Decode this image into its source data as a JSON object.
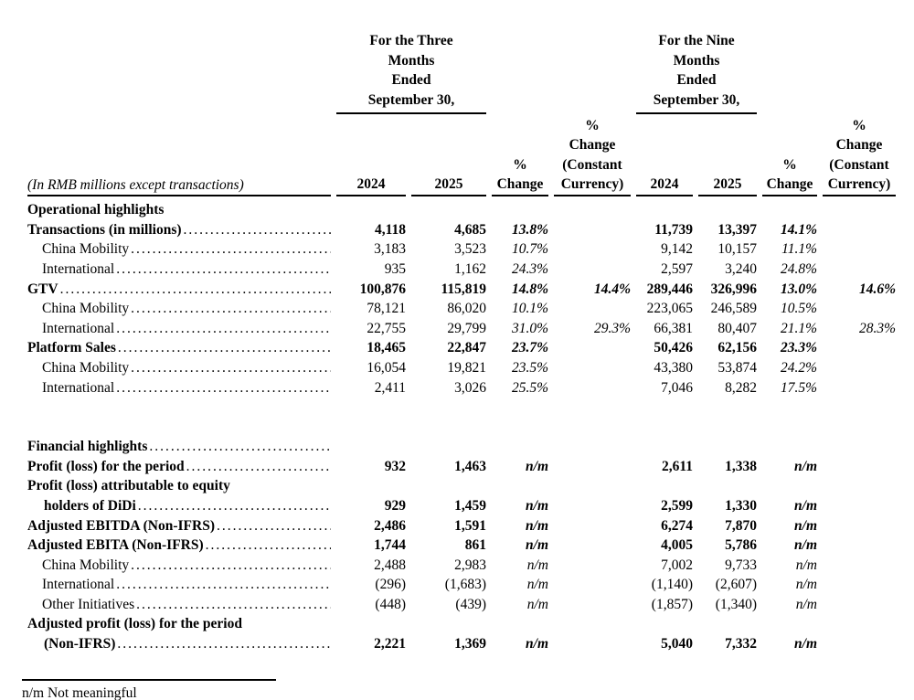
{
  "page": {
    "background": "#ffffff",
    "text_color": "#000000"
  },
  "table": {
    "row_label_header": "(In RMB millions except transactions)",
    "period_groups": [
      {
        "title": "For the Three\nMonths\nEnded\nSeptember 30,"
      },
      {
        "title": "For the Nine\nMonths\nEnded\nSeptember 30,"
      }
    ],
    "column_headers": [
      "2024",
      "2025",
      "%\nChange",
      "%\nChange\n(Constant\nCurrency)",
      "2024",
      "2025",
      "%\nChange",
      "%\nChange\n(Constant\nCurrency)"
    ],
    "rows": [
      {
        "label": "Operational highlights",
        "bold": true,
        "indent": 0,
        "leader": false,
        "values": [
          "",
          "",
          "",
          "",
          "",
          "",
          "",
          ""
        ]
      },
      {
        "label": "Transactions (in millions)",
        "bold": true,
        "indent": 0,
        "leader": true,
        "values": [
          "4,118",
          "4,685",
          "13.8%",
          "",
          "11,739",
          "13,397",
          "14.1%",
          ""
        ]
      },
      {
        "label": "China Mobility",
        "bold": false,
        "indent": 1,
        "leader": true,
        "values": [
          "3,183",
          "3,523",
          "10.7%",
          "",
          "9,142",
          "10,157",
          "11.1%",
          ""
        ]
      },
      {
        "label": "International",
        "bold": false,
        "indent": 1,
        "leader": true,
        "values": [
          "935",
          "1,162",
          "24.3%",
          "",
          "2,597",
          "3,240",
          "24.8%",
          ""
        ]
      },
      {
        "label": "GTV",
        "bold": true,
        "indent": 0,
        "leader": true,
        "values": [
          "100,876",
          "115,819",
          "14.8%",
          "14.4%",
          "289,446",
          "326,996",
          "13.0%",
          "14.6%"
        ]
      },
      {
        "label": "China Mobility",
        "bold": false,
        "indent": 1,
        "leader": true,
        "values": [
          "78,121",
          "86,020",
          "10.1%",
          "",
          "223,065",
          "246,589",
          "10.5%",
          ""
        ]
      },
      {
        "label": "International",
        "bold": false,
        "indent": 1,
        "leader": true,
        "values": [
          "22,755",
          "29,799",
          "31.0%",
          "29.3%",
          "66,381",
          "80,407",
          "21.1%",
          "28.3%"
        ]
      },
      {
        "label": "Platform Sales",
        "bold": true,
        "indent": 0,
        "leader": true,
        "values": [
          "18,465",
          "22,847",
          "23.7%",
          "",
          "50,426",
          "62,156",
          "23.3%",
          ""
        ]
      },
      {
        "label": "China Mobility",
        "bold": false,
        "indent": 1,
        "leader": true,
        "values": [
          "16,054",
          "19,821",
          "23.5%",
          "",
          "43,380",
          "53,874",
          "24.2%",
          ""
        ]
      },
      {
        "label": "International",
        "bold": false,
        "indent": 1,
        "leader": true,
        "values": [
          "2,411",
          "3,026",
          "25.5%",
          "",
          "7,046",
          "8,282",
          "17.5%",
          ""
        ]
      },
      {
        "spacer": true
      },
      {
        "label": "Financial highlights",
        "bold": true,
        "indent": 0,
        "leader": true,
        "values": [
          "",
          "",
          "",
          "",
          "",
          "",
          "",
          ""
        ]
      },
      {
        "label": "Profit (loss) for the period",
        "bold": true,
        "indent": 0,
        "leader": true,
        "values": [
          "932",
          "1,463",
          "n/m",
          "",
          "2,611",
          "1,338",
          "n/m",
          ""
        ]
      },
      {
        "label": "Profit (loss) attributable to equity",
        "bold": true,
        "indent": 0,
        "leader": false,
        "values": [
          "",
          "",
          "",
          "",
          "",
          "",
          "",
          ""
        ]
      },
      {
        "label": "holders of DiDi",
        "bold": true,
        "indent": 2,
        "leader": true,
        "values": [
          "929",
          "1,459",
          "n/m",
          "",
          "2,599",
          "1,330",
          "n/m",
          ""
        ]
      },
      {
        "label": "Adjusted EBITDA (Non-IFRS)",
        "bold": true,
        "indent": 0,
        "leader": true,
        "values": [
          "2,486",
          "1,591",
          "n/m",
          "",
          "6,274",
          "7,870",
          "n/m",
          ""
        ]
      },
      {
        "label": "Adjusted EBITA (Non-IFRS)",
        "bold": true,
        "indent": 0,
        "leader": true,
        "values": [
          "1,744",
          "861",
          "n/m",
          "",
          "4,005",
          "5,786",
          "n/m",
          ""
        ]
      },
      {
        "label": "China Mobility",
        "bold": false,
        "indent": 1,
        "leader": true,
        "values": [
          "2,488",
          "2,983",
          "n/m",
          "",
          "7,002",
          "9,733",
          "n/m",
          ""
        ]
      },
      {
        "label": "International",
        "bold": false,
        "indent": 1,
        "leader": true,
        "values": [
          "(296)",
          "(1,683)",
          "n/m",
          "",
          "(1,140)",
          "(2,607)",
          "n/m",
          ""
        ]
      },
      {
        "label": "Other Initiatives",
        "bold": false,
        "indent": 1,
        "leader": true,
        "values": [
          "(448)",
          "(439)",
          "n/m",
          "",
          "(1,857)",
          "(1,340)",
          "n/m",
          ""
        ]
      },
      {
        "label": "Adjusted profit (loss) for the period",
        "bold": true,
        "indent": 0,
        "leader": false,
        "values": [
          "",
          "",
          "",
          "",
          "",
          "",
          "",
          ""
        ]
      },
      {
        "label": "(Non-IFRS)",
        "bold": true,
        "indent": 2,
        "leader": true,
        "values": [
          "2,221",
          "1,369",
          "n/m",
          "",
          "5,040",
          "7,332",
          "n/m",
          ""
        ]
      }
    ]
  },
  "footnote": {
    "text": "n/m Not meaningful"
  }
}
